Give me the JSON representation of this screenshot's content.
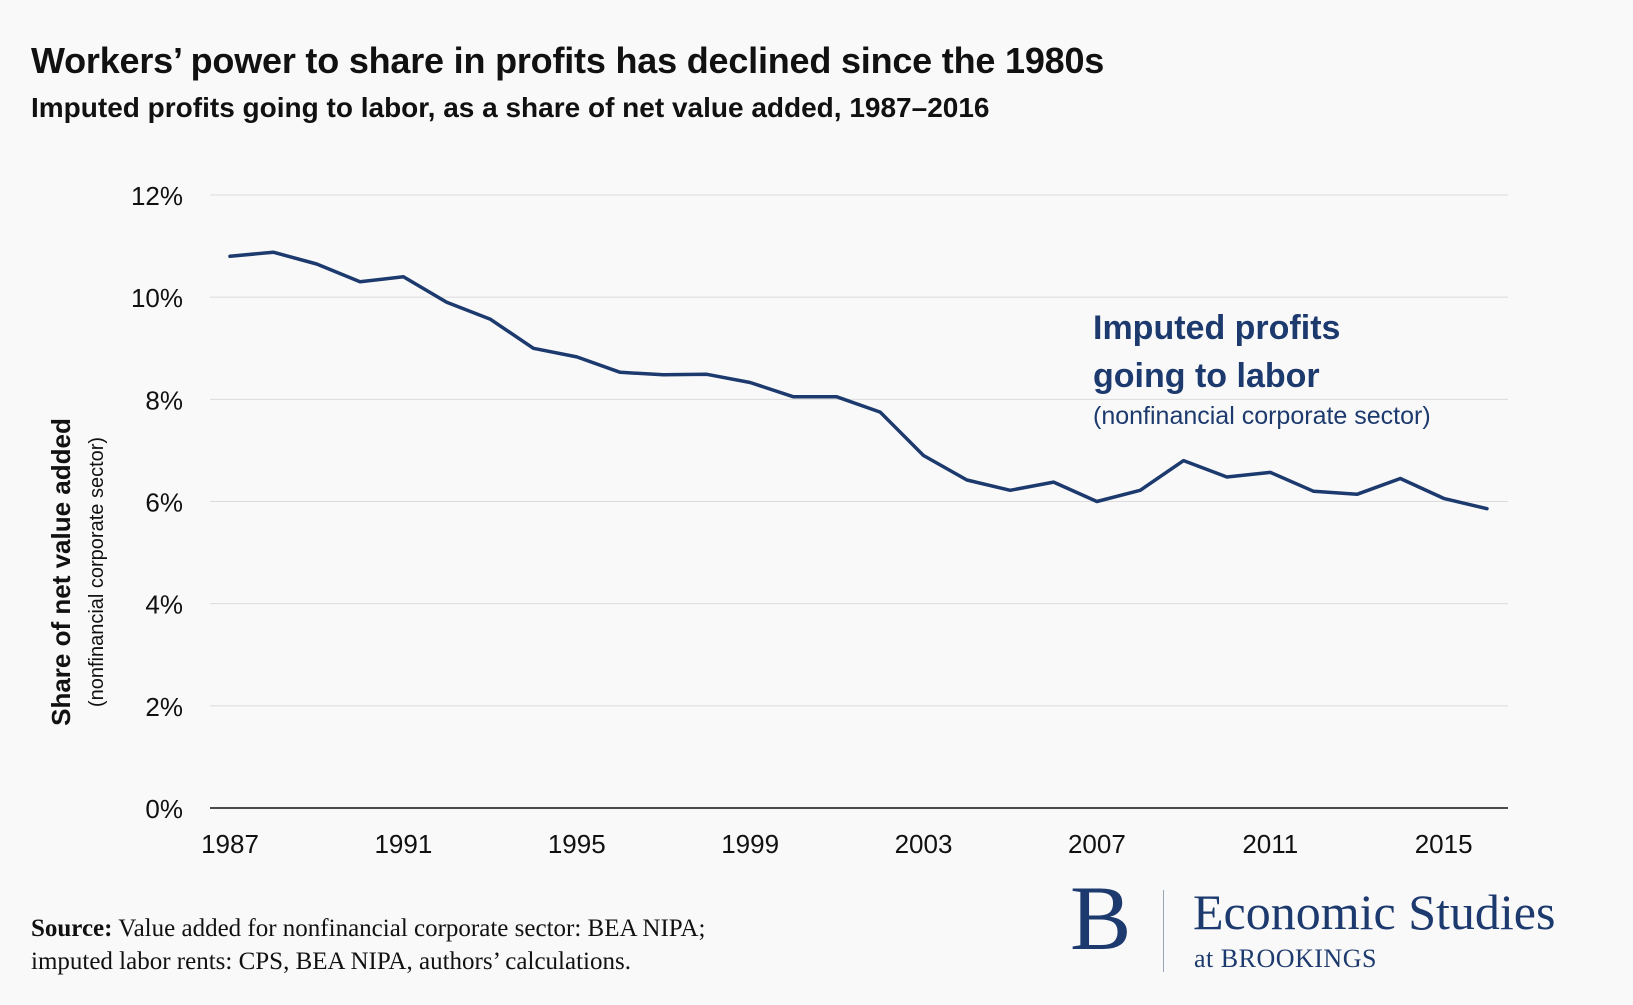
{
  "header": {
    "title": "Workers’ power to share in profits has declined since the 1980s",
    "subtitle": "Imputed profits going to labor, as a share of net value added, 1987–2016"
  },
  "chart_data": {
    "type": "line",
    "title": "Workers’ power to share in profits has declined since the 1980s",
    "subtitle": "Imputed profits going to labor, as a share of net value added, 1987–2016",
    "xlabel": "",
    "ylabel": "Share of net value added",
    "ylabel_note": "(nonfinancial corporate sector)",
    "ylim": [
      0,
      12
    ],
    "xlim": [
      1987,
      2016
    ],
    "y_ticks": [
      0,
      2,
      4,
      6,
      8,
      10,
      12
    ],
    "y_tick_labels": [
      "0%",
      "2%",
      "4%",
      "6%",
      "8%",
      "10%",
      "12%"
    ],
    "x_ticks": [
      1987,
      1991,
      1995,
      1999,
      2003,
      2007,
      2011,
      2015
    ],
    "x_tick_labels": [
      "1987",
      "1991",
      "1995",
      "1999",
      "2003",
      "2007",
      "2011",
      "2015"
    ],
    "grid": true,
    "color": "#1d3a6e",
    "series": [
      {
        "name": "Imputed profits going to labor",
        "x": [
          1987,
          1988,
          1989,
          1990,
          1991,
          1992,
          1993,
          1994,
          1995,
          1996,
          1997,
          1998,
          1999,
          2000,
          2001,
          2002,
          2003,
          2004,
          2005,
          2006,
          2007,
          2008,
          2009,
          2010,
          2011,
          2012,
          2013,
          2014,
          2015,
          2016
        ],
        "values": [
          10.8,
          10.88,
          10.65,
          10.3,
          10.4,
          9.9,
          9.57,
          9.0,
          8.83,
          8.53,
          8.48,
          8.49,
          8.33,
          8.05,
          8.05,
          7.75,
          6.9,
          6.42,
          6.22,
          6.38,
          6.0,
          6.22,
          6.8,
          6.48,
          6.57,
          6.2,
          6.14,
          6.45,
          6.06,
          5.86
        ]
      }
    ],
    "annotation": {
      "line1": "Imputed profits",
      "line2": "going to labor",
      "note": "(nonfinancial corporate sector)"
    }
  },
  "footer": {
    "source_label": "Source:",
    "source_line1": "Value added for nonfinancial corporate sector: BEA NIPA;",
    "source_line2": "imputed labor rents: CPS, BEA NIPA, authors’ calculations.",
    "logo_letter": "B",
    "logo_name": "Economic Studies",
    "logo_sub": "at BROOKINGS"
  }
}
